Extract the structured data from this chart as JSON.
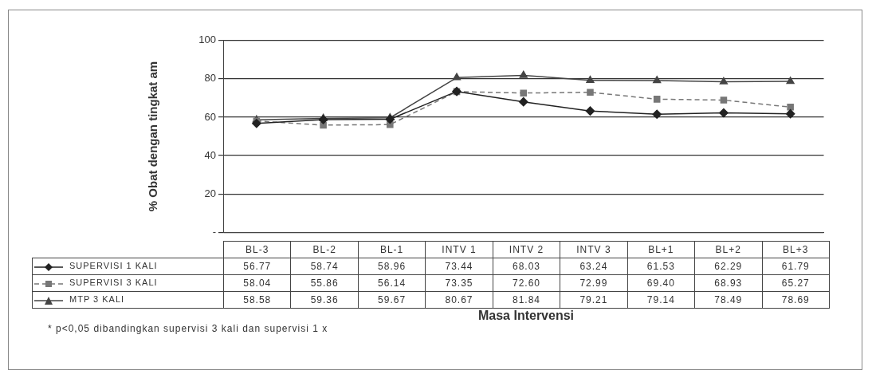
{
  "chart_data": {
    "type": "line",
    "ylabel": "% Obat dengan tingkat am",
    "xlabel": "Masa Intervensi",
    "categories": [
      "BL-3",
      "BL-2",
      "BL-1",
      "INTV 1",
      "INTV 2",
      "INTV 3",
      "BL+1",
      "BL+2",
      "BL+3"
    ],
    "series": [
      {
        "name": "SUPERVISI 1 KALI",
        "color": "#222222",
        "marker": "diamond",
        "line_style": "solid",
        "values": [
          56.77,
          58.74,
          58.96,
          73.44,
          68.03,
          63.24,
          61.53,
          62.29,
          61.79
        ],
        "value_labels": [
          "56.77",
          "58.74",
          "58.96",
          "73.44",
          "68.03",
          "63.24",
          "61.53",
          "62.29",
          "61.79"
        ]
      },
      {
        "name": "SUPERVISI 3 KALI",
        "color": "#777777",
        "marker": "square",
        "line_style": "dashed",
        "values": [
          58.04,
          55.86,
          56.14,
          73.35,
          72.6,
          72.99,
          69.4,
          68.93,
          65.27
        ],
        "value_labels": [
          "58.04",
          "55.86",
          "56.14",
          "73.35",
          "72.60",
          "72.99",
          "69.40",
          "68.93",
          "65.27"
        ]
      },
      {
        "name": "MTP 3 KALI",
        "color": "#444444",
        "marker": "triangle",
        "line_style": "solid",
        "values": [
          58.58,
          59.36,
          59.67,
          80.67,
          81.84,
          79.21,
          79.14,
          78.49,
          78.69
        ],
        "value_labels": [
          "58.58",
          "59.36",
          "59.67",
          "80.67",
          "81.84",
          "79.21",
          "79.14",
          "78.49",
          "78.69"
        ]
      }
    ],
    "ylim": [
      0,
      100
    ],
    "yticks": [
      {
        "value": 0,
        "label": "-"
      },
      20,
      40,
      60,
      80,
      100
    ],
    "grid": "y",
    "legend": "bottom",
    "annotations": [
      "* p<0,05 dibandingkan supervisi 3 kali dan supervisi 1 x"
    ]
  }
}
